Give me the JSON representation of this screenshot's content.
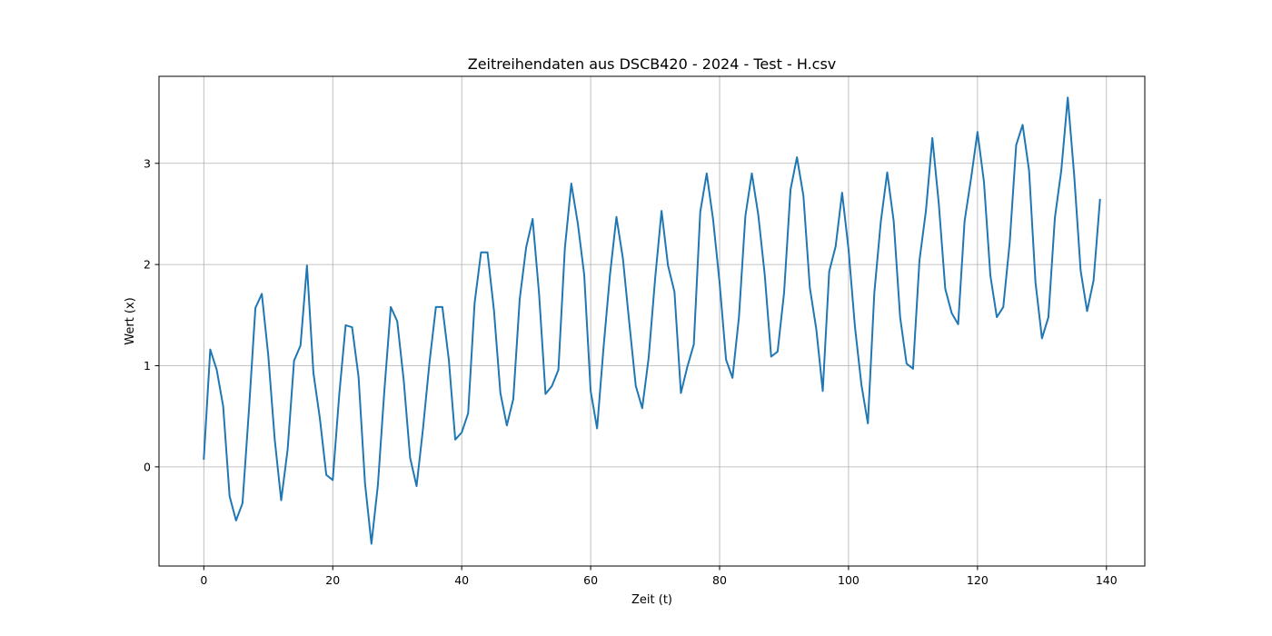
{
  "chart_data": {
    "type": "line",
    "title": "Zeitreihendaten aus DSCB420 - 2024 - Test - H.csv",
    "xlabel": "Zeit (t)",
    "ylabel": "Wert (x)",
    "xlim": [
      -6.95,
      145.95
    ],
    "ylim": [
      -0.98,
      3.86
    ],
    "xticks": [
      0,
      20,
      40,
      60,
      80,
      100,
      120,
      140
    ],
    "yticks": [
      0,
      1,
      2,
      3
    ],
    "grid": true,
    "legend": "none",
    "series": [
      {
        "color": "#1f77b4",
        "x_start": 0,
        "x_step": 1,
        "values": [
          0.08,
          1.16,
          0.96,
          0.6,
          -0.29,
          -0.53,
          -0.36,
          0.56,
          1.57,
          1.71,
          1.1,
          0.27,
          -0.33,
          0.17,
          1.05,
          1.2,
          1.99,
          0.93,
          0.48,
          -0.08,
          -0.13,
          0.71,
          1.4,
          1.38,
          0.89,
          -0.16,
          -0.76,
          -0.18,
          0.75,
          1.58,
          1.44,
          0.86,
          0.09,
          -0.19,
          0.38,
          1.03,
          1.58,
          1.58,
          1.06,
          0.27,
          0.34,
          0.53,
          1.62,
          2.12,
          2.12,
          1.55,
          0.73,
          0.41,
          0.67,
          1.66,
          2.17,
          2.45,
          1.71,
          0.72,
          0.8,
          0.96,
          2.16,
          2.8,
          2.41,
          1.9,
          0.75,
          0.38,
          1.18,
          1.9,
          2.47,
          2.06,
          1.42,
          0.8,
          0.58,
          1.08,
          1.86,
          2.53,
          1.99,
          1.73,
          0.73,
          0.99,
          1.21,
          2.52,
          2.9,
          2.44,
          1.82,
          1.06,
          0.88,
          1.48,
          2.48,
          2.9,
          2.49,
          1.9,
          1.09,
          1.14,
          1.72,
          2.74,
          3.06,
          2.68,
          1.77,
          1.36,
          0.75,
          1.93,
          2.18,
          2.71,
          2.15,
          1.38,
          0.81,
          0.43,
          1.72,
          2.42,
          2.91,
          2.43,
          1.48,
          1.02,
          0.97,
          2.04,
          2.53,
          3.25,
          2.6,
          1.76,
          1.52,
          1.41,
          2.43,
          2.85,
          3.31,
          2.82,
          1.89,
          1.48,
          1.58,
          2.22,
          3.18,
          3.38,
          2.93,
          1.82,
          1.27,
          1.48,
          2.46,
          2.93,
          3.65,
          2.88,
          1.94,
          1.54,
          1.84,
          2.64
        ]
      }
    ]
  }
}
